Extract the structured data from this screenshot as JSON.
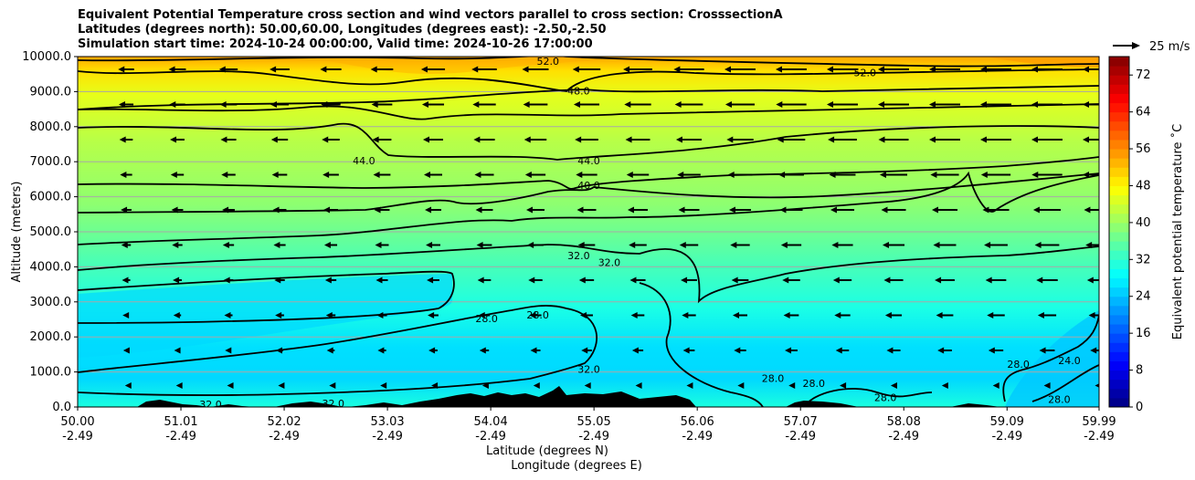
{
  "chart_data": {
    "type": "heatmap",
    "title_lines": [
      "Equivalent Potential Temperature cross section and wind vectors parallel to cross section: CrosssectionA",
      "Latitudes (degrees north): 50.00,60.00, Longitudes (degrees east): -2.50,-2.50",
      "Simulation start time: 2024-10-24 00:00:00, Valid time: 2024-10-26 17:00:00"
    ],
    "ylabel": "Altitude (meters)",
    "xlabel_1": "Latitude (degrees N)",
    "xlabel_2": "Longitude (degrees E)",
    "xlim": [
      50.0,
      59.99
    ],
    "ylim": [
      0,
      10000
    ],
    "grid": "horizontal",
    "x_ticks": [
      {
        "lat": "50.00",
        "lon": "-2.49",
        "v": 50.0
      },
      {
        "lat": "51.01",
        "lon": "-2.49",
        "v": 51.01
      },
      {
        "lat": "52.02",
        "lon": "-2.49",
        "v": 52.02
      },
      {
        "lat": "53.03",
        "lon": "-2.49",
        "v": 53.03
      },
      {
        "lat": "54.04",
        "lon": "-2.49",
        "v": 54.04
      },
      {
        "lat": "55.05",
        "lon": "-2.49",
        "v": 55.05
      },
      {
        "lat": "56.06",
        "lon": "-2.49",
        "v": 56.06
      },
      {
        "lat": "57.07",
        "lon": "-2.49",
        "v": 57.07
      },
      {
        "lat": "58.08",
        "lon": "-2.49",
        "v": 58.08
      },
      {
        "lat": "59.09",
        "lon": "-2.49",
        "v": 59.09
      },
      {
        "lat": "59.99",
        "lon": "-2.49",
        "v": 59.99
      }
    ],
    "y_ticks": [
      "0.0",
      "1000.0",
      "2000.0",
      "3000.0",
      "4000.0",
      "5000.0",
      "6000.0",
      "7000.0",
      "8000.0",
      "9000.0",
      "10000.0"
    ],
    "colorbar": {
      "label": "Equivalent potential temperature ˚C",
      "min": 0,
      "max": 76,
      "step": 2,
      "ticks": [
        "0",
        "8",
        "16",
        "24",
        "32",
        "40",
        "48",
        "56",
        "64",
        "72"
      ],
      "tick_values": [
        0,
        8,
        16,
        24,
        32,
        40,
        48,
        56,
        64,
        72
      ]
    },
    "quiver_key": {
      "label": "25 m/s",
      "value": 25
    },
    "contour_labels": [
      {
        "text": "52.0",
        "lat": 54.6,
        "alt": 9850
      },
      {
        "text": "52.0",
        "lat": 57.7,
        "alt": 9520
      },
      {
        "text": "48.0",
        "lat": 54.9,
        "alt": 9000
      },
      {
        "text": "44.0",
        "lat": 55.0,
        "alt": 7000
      },
      {
        "text": "44.0",
        "lat": 52.8,
        "alt": 7000
      },
      {
        "text": "40.0",
        "lat": 55.0,
        "alt": 6300
      },
      {
        "text": "32.0",
        "lat": 54.9,
        "alt": 4300
      },
      {
        "text": "32.0",
        "lat": 55.2,
        "alt": 4100
      },
      {
        "text": "28.0",
        "lat": 54.0,
        "alt": 2500
      },
      {
        "text": "28.0",
        "lat": 54.5,
        "alt": 2600
      },
      {
        "text": "32.0",
        "lat": 55.0,
        "alt": 1050
      },
      {
        "text": "28.0",
        "lat": 56.8,
        "alt": 800
      },
      {
        "text": "28.0",
        "lat": 57.2,
        "alt": 650
      },
      {
        "text": "28.0",
        "lat": 57.9,
        "alt": 250
      },
      {
        "text": "28.0",
        "lat": 59.2,
        "alt": 1200
      },
      {
        "text": "24.0",
        "lat": 59.7,
        "alt": 1300
      },
      {
        "text": "28.0",
        "lat": 59.6,
        "alt": 200
      },
      {
        "text": "32.0",
        "lat": 51.3,
        "alt": 50
      },
      {
        "text": "32.0",
        "lat": 52.5,
        "alt": 80
      }
    ]
  }
}
